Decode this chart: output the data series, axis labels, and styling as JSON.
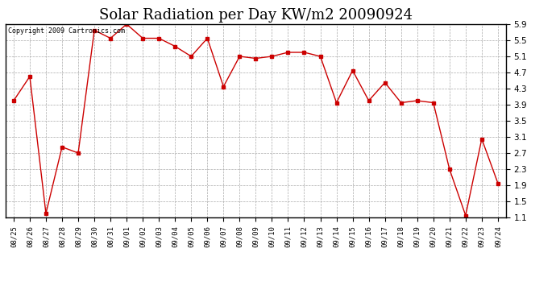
{
  "title": "Solar Radiation per Day KW/m2 20090924",
  "copyright_text": "Copyright 2009 Cartronics.com",
  "x_labels": [
    "08/25",
    "08/26",
    "08/27",
    "08/28",
    "08/29",
    "08/30",
    "08/31",
    "09/01",
    "09/02",
    "09/03",
    "09/04",
    "09/05",
    "09/06",
    "09/07",
    "09/08",
    "09/09",
    "09/10",
    "09/11",
    "09/12",
    "09/13",
    "09/14",
    "09/15",
    "09/16",
    "09/17",
    "09/18",
    "09/19",
    "09/20",
    "09/21",
    "09/22",
    "09/23",
    "09/24"
  ],
  "y_values": [
    4.0,
    4.6,
    1.2,
    2.85,
    2.7,
    5.75,
    5.55,
    5.9,
    5.55,
    5.55,
    5.35,
    5.1,
    5.55,
    4.35,
    5.1,
    5.05,
    5.1,
    5.2,
    5.2,
    5.1,
    3.95,
    4.75,
    4.0,
    4.45,
    3.95,
    4.0,
    3.95,
    2.3,
    1.15,
    3.05,
    1.95
  ],
  "ylim": [
    1.1,
    5.9
  ],
  "yticks": [
    1.1,
    1.5,
    1.9,
    2.3,
    2.7,
    3.1,
    3.5,
    3.9,
    4.3,
    4.7,
    5.1,
    5.5,
    5.9
  ],
  "line_color": "#cc0000",
  "marker": "s",
  "marker_size": 2.5,
  "bg_color": "#ffffff",
  "grid_color": "#aaaaaa",
  "title_fontsize": 13,
  "xlabel_fontsize": 6.5,
  "ylabel_fontsize": 7.5
}
